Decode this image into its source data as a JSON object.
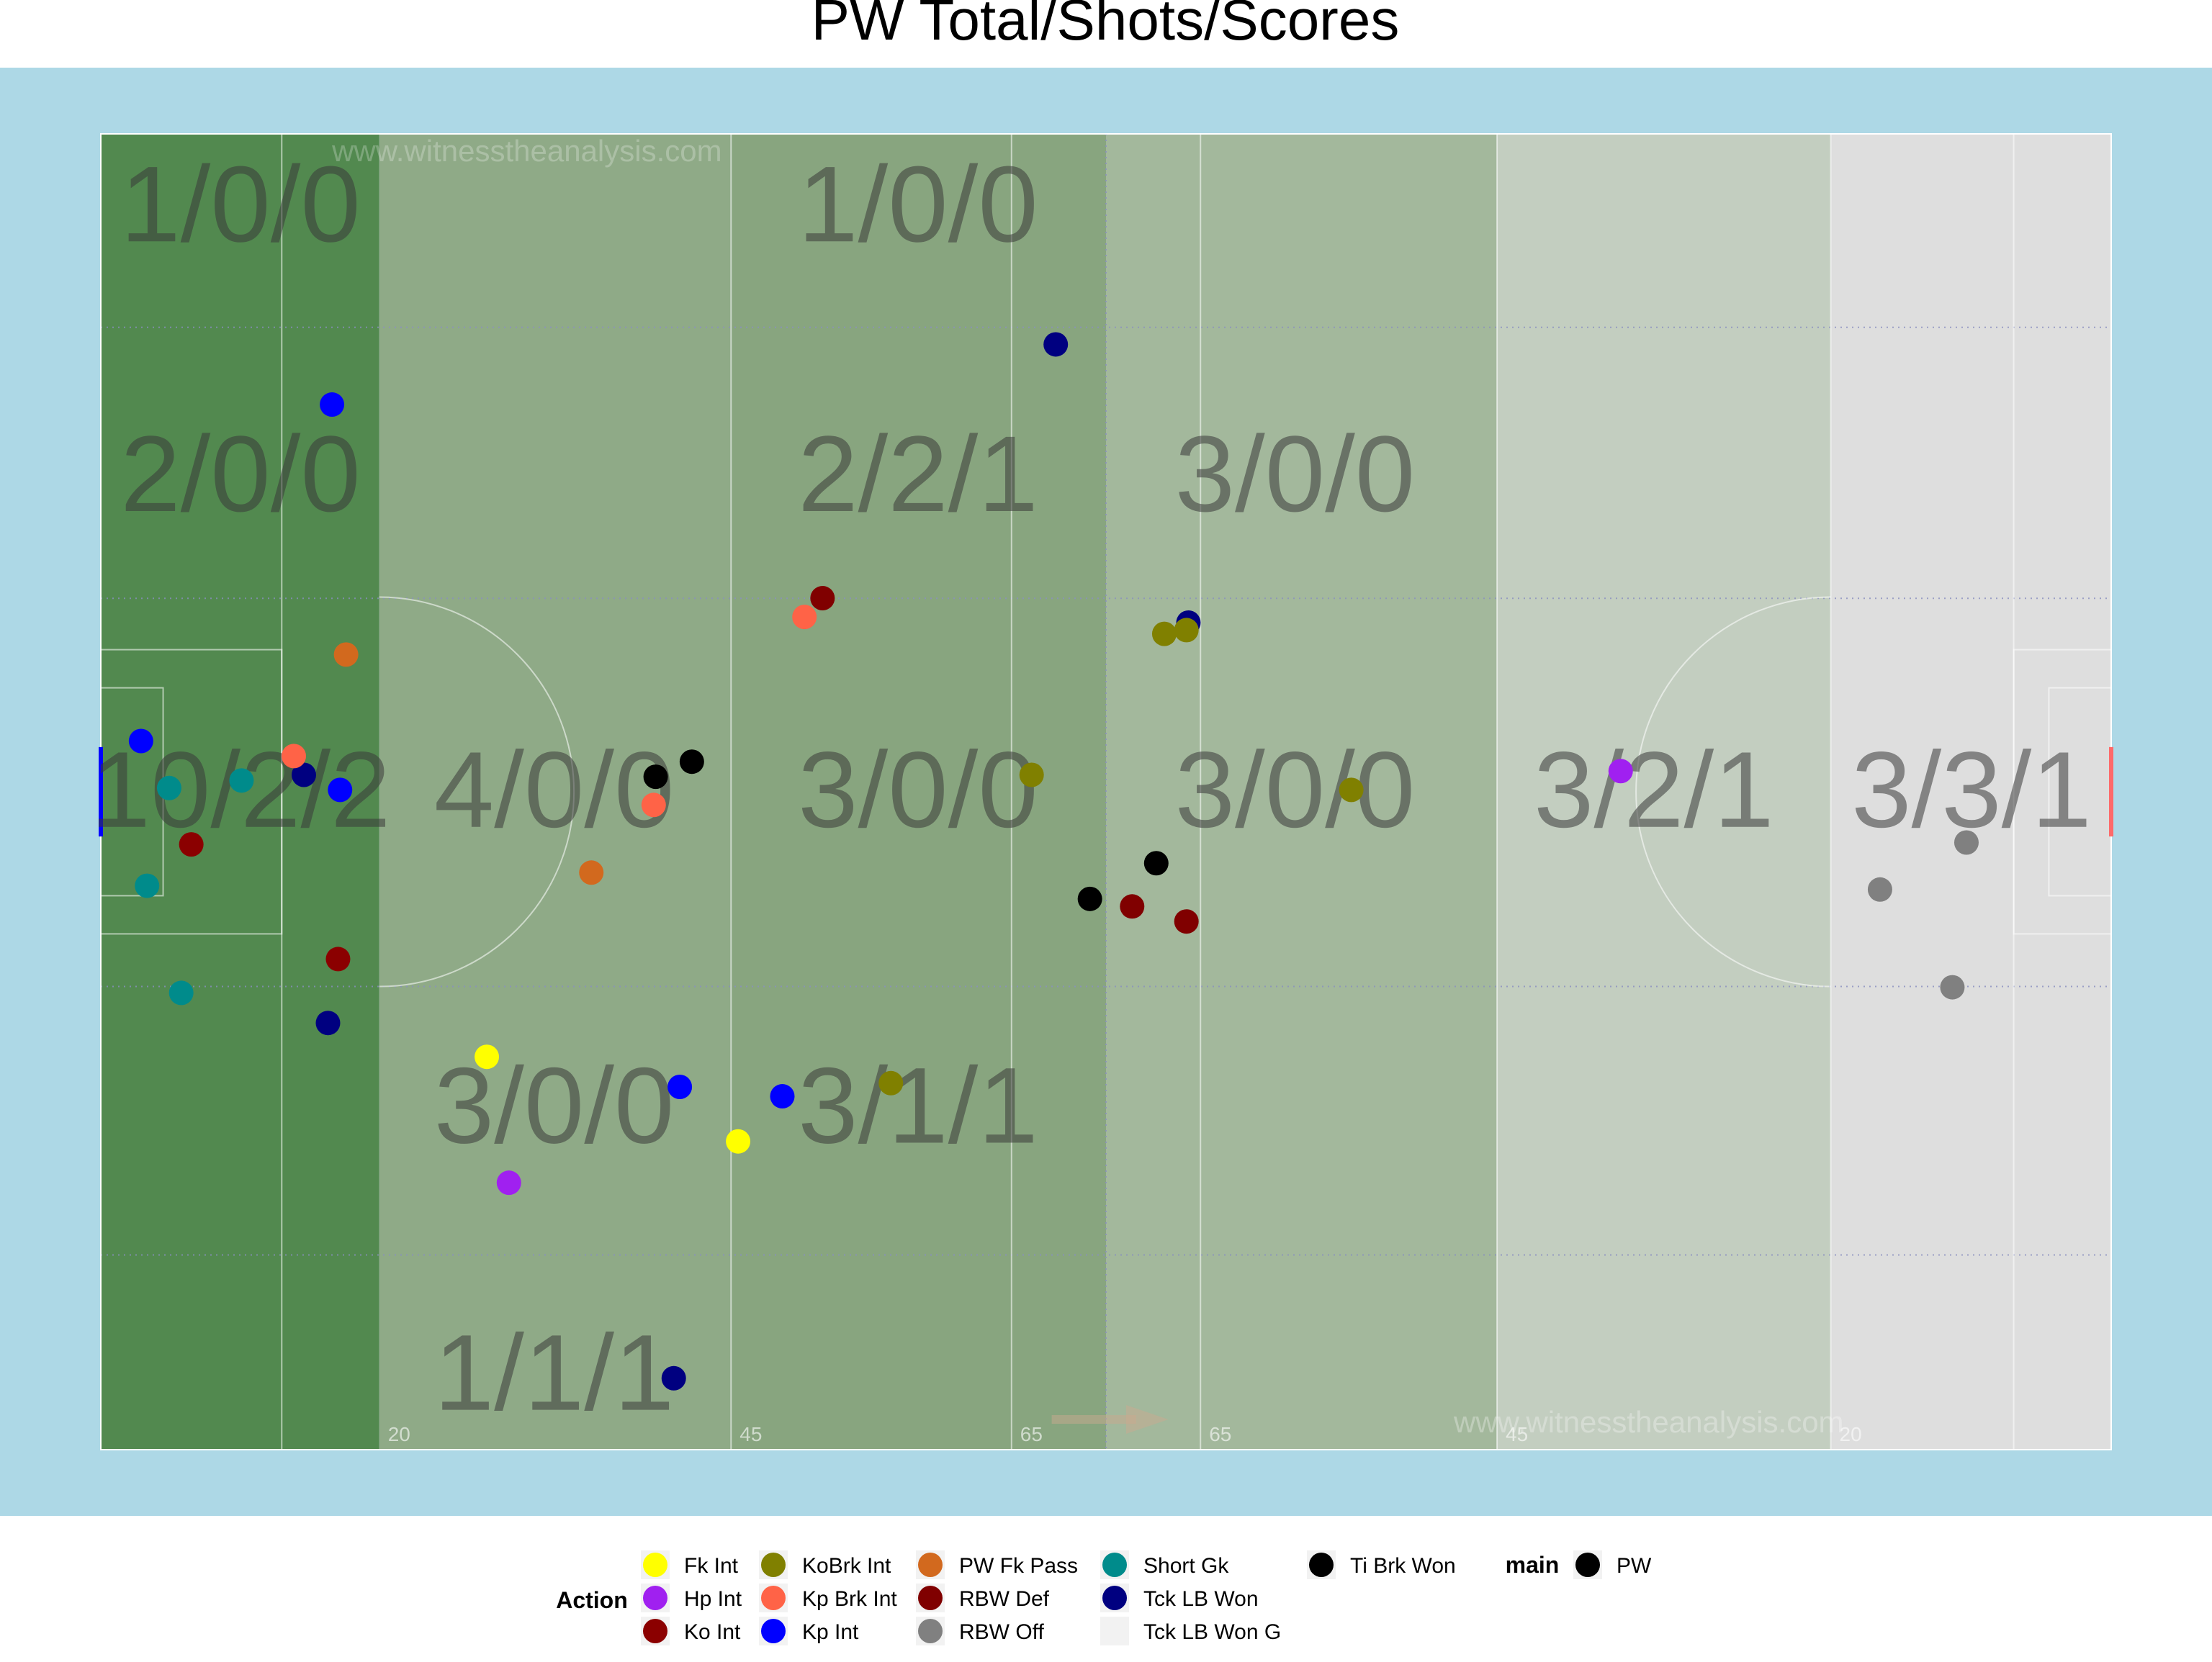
{
  "chart_data": {
    "type": "scatter",
    "title": "PW Total/Shots/Scores",
    "watermark": "www.witnesstheanalysis.com",
    "pitch_line_labels": [
      "20",
      "45",
      "65",
      "65",
      "45",
      "20"
    ],
    "colors": {
      "background": "#add8e6",
      "zone_dark": "#52894f",
      "zone_mid": "#8faa87",
      "zone_mid2": "#88a57f",
      "zone_light1": "#a3b89c",
      "zone_light2": "#c3cec0",
      "zone_light3": "#dedede",
      "zone_text": "#3a3a3a"
    },
    "zone_labels": [
      {
        "text": "1/0/0",
        "col": 0,
        "row": 0
      },
      {
        "text": "2/0/0",
        "col": 0,
        "row": 1
      },
      {
        "text": "10/2/2",
        "col": 0,
        "row": 2
      },
      {
        "text": "4/0/0",
        "col": 1,
        "row": 2
      },
      {
        "text": "3/0/0",
        "col": 1,
        "row": 3
      },
      {
        "text": "1/1/1",
        "col": 1,
        "row": 4
      },
      {
        "text": "1/0/0",
        "col": 2,
        "row": 0
      },
      {
        "text": "2/2/1",
        "col": 2,
        "row": 1
      },
      {
        "text": "3/0/0",
        "col": 2,
        "row": 2
      },
      {
        "text": "3/1/1",
        "col": 2,
        "row": 3
      },
      {
        "text": "3/0/0",
        "col": 3,
        "row": 1
      },
      {
        "text": "3/0/0",
        "col": 3,
        "row": 2
      },
      {
        "text": "3/2/1",
        "col": 4,
        "row": 2
      },
      {
        "text": "3/3/1",
        "col": 5,
        "row": 2
      }
    ],
    "legend": {
      "action_title": "Action",
      "main_title": "main",
      "action_items": [
        {
          "label": "Fk Int",
          "color": "#ffff00"
        },
        {
          "label": "Hp Int",
          "color": "#a020f0"
        },
        {
          "label": "Ko Int",
          "color": "#8b0000"
        },
        {
          "label": "KoBrk Int",
          "color": "#808000"
        },
        {
          "label": "Kp Brk Int",
          "color": "#ff6347"
        },
        {
          "label": "Kp Int",
          "color": "#0000ff"
        },
        {
          "label": "PW Fk Pass",
          "color": "#d2691e"
        },
        {
          "label": "RBW Def",
          "color": "#800000"
        },
        {
          "label": "RBW Off",
          "color": "#808080"
        },
        {
          "label": "Short Gk",
          "color": "#008b8b"
        },
        {
          "label": "Tck LB Won",
          "color": "#000080"
        },
        {
          "label": "Tck LB Won G",
          "color": "#f2f2f2"
        },
        {
          "label": "Ti Brk Won",
          "color": "#000000"
        }
      ],
      "main_items": [
        {
          "label": "PW",
          "color": "#000000"
        }
      ]
    },
    "points": [
      {
        "x": 3.4,
        "y": 35.2,
        "action": "Short Gk"
      },
      {
        "x": 2.3,
        "y": 30.0,
        "action": "Short Gk"
      },
      {
        "x": 7.0,
        "y": 35.6,
        "action": "Short Gk"
      },
      {
        "x": 4.0,
        "y": 24.3,
        "action": "Short Gk"
      },
      {
        "x": 2.0,
        "y": 37.7,
        "action": "Kp Int"
      },
      {
        "x": 11.9,
        "y": 35.1,
        "action": "Kp Int"
      },
      {
        "x": 11.5,
        "y": 55.6,
        "action": "Kp Int"
      },
      {
        "x": 28.8,
        "y": 19.3,
        "action": "Kp Int"
      },
      {
        "x": 33.9,
        "y": 18.8,
        "action": "Kp Int"
      },
      {
        "x": 12.2,
        "y": 42.3,
        "action": "PW Fk Pass"
      },
      {
        "x": 24.4,
        "y": 30.7,
        "action": "PW Fk Pass"
      },
      {
        "x": 10.1,
        "y": 35.9,
        "action": "Tck LB Won"
      },
      {
        "x": 11.3,
        "y": 22.7,
        "action": "Tck LB Won"
      },
      {
        "x": 28.5,
        "y": 3.8,
        "action": "Tck LB Won"
      },
      {
        "x": 47.5,
        "y": 58.8,
        "action": "Tck LB Won"
      },
      {
        "x": 54.1,
        "y": 44.0,
        "action": "Tck LB Won"
      },
      {
        "x": 4.5,
        "y": 32.2,
        "action": "Ko Int"
      },
      {
        "x": 11.8,
        "y": 26.1,
        "action": "Ko Int"
      },
      {
        "x": 9.6,
        "y": 36.9,
        "action": "Kp Brk Int"
      },
      {
        "x": 27.5,
        "y": 34.3,
        "action": "Kp Brk Int"
      },
      {
        "x": 35.0,
        "y": 44.3,
        "action": "Kp Brk Int"
      },
      {
        "x": 27.6,
        "y": 35.8,
        "action": "Ti Brk Won"
      },
      {
        "x": 29.4,
        "y": 36.6,
        "action": "Ti Brk Won"
      },
      {
        "x": 49.2,
        "y": 29.3,
        "action": "Ti Brk Won"
      },
      {
        "x": 52.5,
        "y": 31.2,
        "action": "Ti Brk Won"
      },
      {
        "x": 19.2,
        "y": 20.9,
        "action": "Fk Int"
      },
      {
        "x": 31.7,
        "y": 16.4,
        "action": "Fk Int"
      },
      {
        "x": 20.3,
        "y": 14.2,
        "action": "Hp Int"
      },
      {
        "x": 75.6,
        "y": 36.1,
        "action": "Hp Int"
      },
      {
        "x": 35.9,
        "y": 45.3,
        "action": "RBW Def"
      },
      {
        "x": 51.3,
        "y": 28.9,
        "action": "RBW Def"
      },
      {
        "x": 54.0,
        "y": 28.1,
        "action": "RBW Def"
      },
      {
        "x": 39.3,
        "y": 19.5,
        "action": "KoBrk Int"
      },
      {
        "x": 46.3,
        "y": 35.9,
        "action": "KoBrk Int"
      },
      {
        "x": 52.9,
        "y": 43.4,
        "action": "KoBrk Int"
      },
      {
        "x": 54.0,
        "y": 43.6,
        "action": "KoBrk Int"
      },
      {
        "x": 62.2,
        "y": 35.1,
        "action": "KoBrk Int"
      },
      {
        "x": 88.5,
        "y": 29.8,
        "action": "RBW Off"
      },
      {
        "x": 92.8,
        "y": 32.3,
        "action": "RBW Off"
      },
      {
        "x": 92.1,
        "y": 24.6,
        "action": "RBW Off"
      }
    ]
  }
}
